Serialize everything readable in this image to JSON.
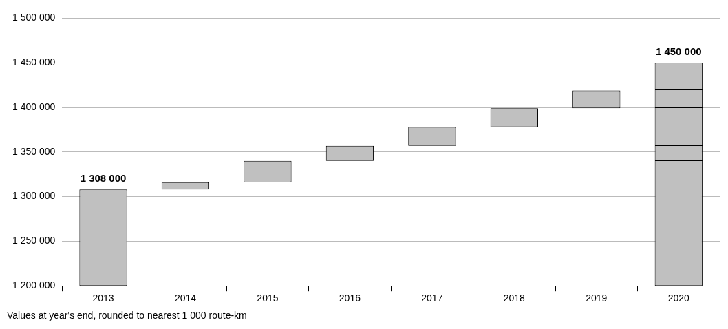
{
  "chart_data": {
    "type": "bar",
    "categories": [
      "2013",
      "2014",
      "2015",
      "2016",
      "2017",
      "2018",
      "2019",
      "2020"
    ],
    "base": [
      1200000,
      1308000,
      1316000,
      1340000,
      1357000,
      1378000,
      1399000,
      1200000
    ],
    "values": [
      108000,
      8000,
      24000,
      17000,
      21000,
      21000,
      20000,
      250000
    ],
    "color": "#c0c0c0",
    "value_labels": [
      "1 308 000",
      null,
      null,
      null,
      null,
      null,
      null,
      "1 450 000"
    ],
    "ylim": [
      1200000,
      1500000
    ],
    "yticks": [
      {
        "value": 1200000,
        "label": "1 200 000"
      },
      {
        "value": 1250000,
        "label": "1 250 000"
      },
      {
        "value": 1300000,
        "label": "1 300 000"
      },
      {
        "value": 1350000,
        "label": "1 350 000"
      },
      {
        "value": 1400000,
        "label": "1 400 000"
      },
      {
        "value": 1450000,
        "label": "1 450 000"
      },
      {
        "value": 1500000,
        "label": "1 500 000"
      }
    ],
    "grid": "y",
    "annotations": [
      "Values at year's end, rounded to nearest 1 000 route-km"
    ]
  }
}
